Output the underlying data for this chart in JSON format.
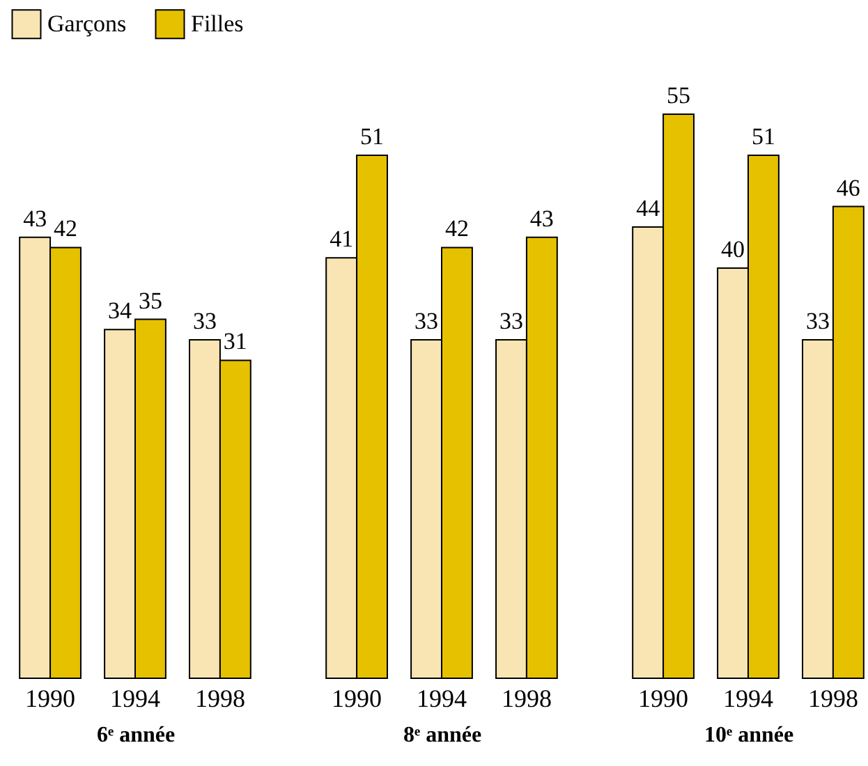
{
  "chart_data": {
    "type": "bar",
    "categories": [
      "1990",
      "1994",
      "1998",
      "1990",
      "1994",
      "1998",
      "1990",
      "1994",
      "1998"
    ],
    "series": [
      {
        "name": "Garçons",
        "color": "#f9e5b3",
        "values": [
          43,
          34,
          33,
          41,
          33,
          33,
          44,
          40,
          33
        ]
      },
      {
        "name": "Filles",
        "color": "#e6c100",
        "values": [
          42,
          35,
          31,
          51,
          42,
          43,
          55,
          51,
          46
        ]
      }
    ],
    "annotations": [
      "6ᵉ année",
      "8ᵉ année",
      "10ᵉ année"
    ],
    "data_labels": true,
    "legend": "top left",
    "grid": false
  }
}
